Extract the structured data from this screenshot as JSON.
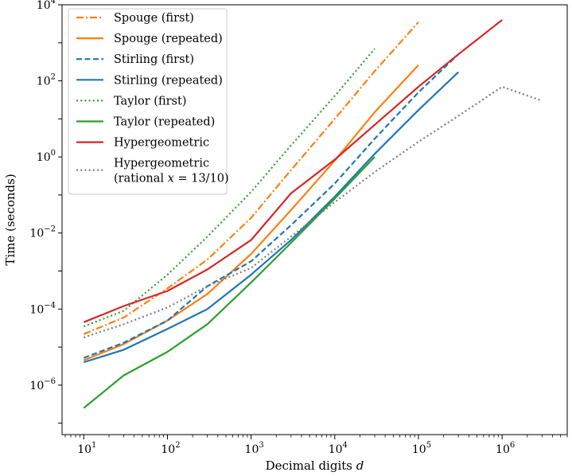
{
  "chart_data": {
    "type": "line",
    "title": "",
    "xlabel": "Decimal digits d",
    "ylabel": "Time (seconds)",
    "xscale": "log",
    "yscale": "log",
    "xlim": [
      5.5,
      6000000
    ],
    "ylim": [
      5e-08,
      10000
    ],
    "grid": false,
    "legend_position": "top-left",
    "x_tick_labels": [
      {
        "base": "10",
        "exp": "1"
      },
      {
        "base": "10",
        "exp": "2"
      },
      {
        "base": "10",
        "exp": "3"
      },
      {
        "base": "10",
        "exp": "4"
      },
      {
        "base": "10",
        "exp": "5"
      },
      {
        "base": "10",
        "exp": "6"
      }
    ],
    "y_tick_labels": [
      {
        "base": "10",
        "exp": "−6"
      },
      {
        "base": "10",
        "exp": "−4"
      },
      {
        "base": "10",
        "exp": "−2"
      },
      {
        "base": "10",
        "exp": "0"
      },
      {
        "base": "10",
        "exp": "2"
      },
      {
        "base": "10",
        "exp": "4"
      }
    ],
    "series": [
      {
        "name": "Spouge (first)",
        "color": "#ff7f0e",
        "style": "dashdot",
        "x": [
          10,
          30,
          100,
          300,
          1000,
          3000,
          10000,
          30000,
          100000
        ],
        "y": [
          2.2e-05,
          6e-05,
          0.00035,
          0.002,
          0.025,
          0.45,
          10,
          180,
          3500
        ]
      },
      {
        "name": "Spouge (repeated)",
        "color": "#ff7f0e",
        "style": "solid",
        "x": [
          10,
          30,
          100,
          300,
          1000,
          3000,
          10000,
          30000,
          100000
        ],
        "y": [
          4.5e-06,
          1.2e-05,
          5e-05,
          0.00025,
          0.0028,
          0.04,
          0.8,
          15,
          260
        ]
      },
      {
        "name": "Stirling (first)",
        "color": "#1f77b4",
        "style": "dashed",
        "x": [
          10,
          30,
          100,
          300,
          1000,
          3000,
          10000,
          30000,
          100000,
          300000
        ],
        "y": [
          5.2e-06,
          1.3e-05,
          5e-05,
          0.0004,
          0.0018,
          0.016,
          0.2,
          3,
          50,
          500
        ]
      },
      {
        "name": "Stirling (repeated)",
        "color": "#1f77b4",
        "style": "solid",
        "x": [
          10,
          30,
          100,
          300,
          1000,
          3000,
          10000,
          30000,
          100000,
          300000
        ],
        "y": [
          4e-06,
          8.5e-06,
          3e-05,
          0.0001,
          0.0008,
          0.0065,
          0.09,
          1.2,
          17,
          170
        ]
      },
      {
        "name": "Taylor (first)",
        "color": "#2ca02c",
        "style": "dotted",
        "x": [
          10,
          30,
          100,
          300,
          1000,
          3000,
          10000,
          30000
        ],
        "y": [
          3.5e-05,
          9e-05,
          0.0008,
          0.008,
          0.12,
          2,
          40,
          700
        ]
      },
      {
        "name": "Taylor (repeated)",
        "color": "#2ca02c",
        "style": "solid",
        "x": [
          10,
          30,
          100,
          300,
          1000,
          3000,
          10000,
          30000
        ],
        "y": [
          2.5e-07,
          1.8e-06,
          7.5e-06,
          4e-05,
          0.0005,
          0.0055,
          0.08,
          1
        ]
      },
      {
        "name": "Hypergeometric",
        "color": "#d62728",
        "style": "solid",
        "x": [
          10,
          30,
          100,
          300,
          1000,
          3000,
          10000,
          30000,
          100000,
          300000,
          1000000
        ],
        "y": [
          4.5e-05,
          0.00012,
          0.0003,
          0.0011,
          0.0065,
          0.11,
          0.85,
          7,
          70,
          500,
          4000
        ]
      },
      {
        "name": "Hypergeometric\n(rational x = 13/10)",
        "color": "#7f7f7f",
        "style": "dotted",
        "x": [
          10,
          30,
          100,
          300,
          1000,
          3000,
          10000,
          30000,
          100000,
          300000,
          1000000,
          3000000
        ],
        "y": [
          1.8e-05,
          4e-05,
          0.00011,
          0.0004,
          0.0012,
          0.008,
          0.065,
          0.4,
          2.5,
          12,
          70,
          30
        ]
      }
    ]
  }
}
